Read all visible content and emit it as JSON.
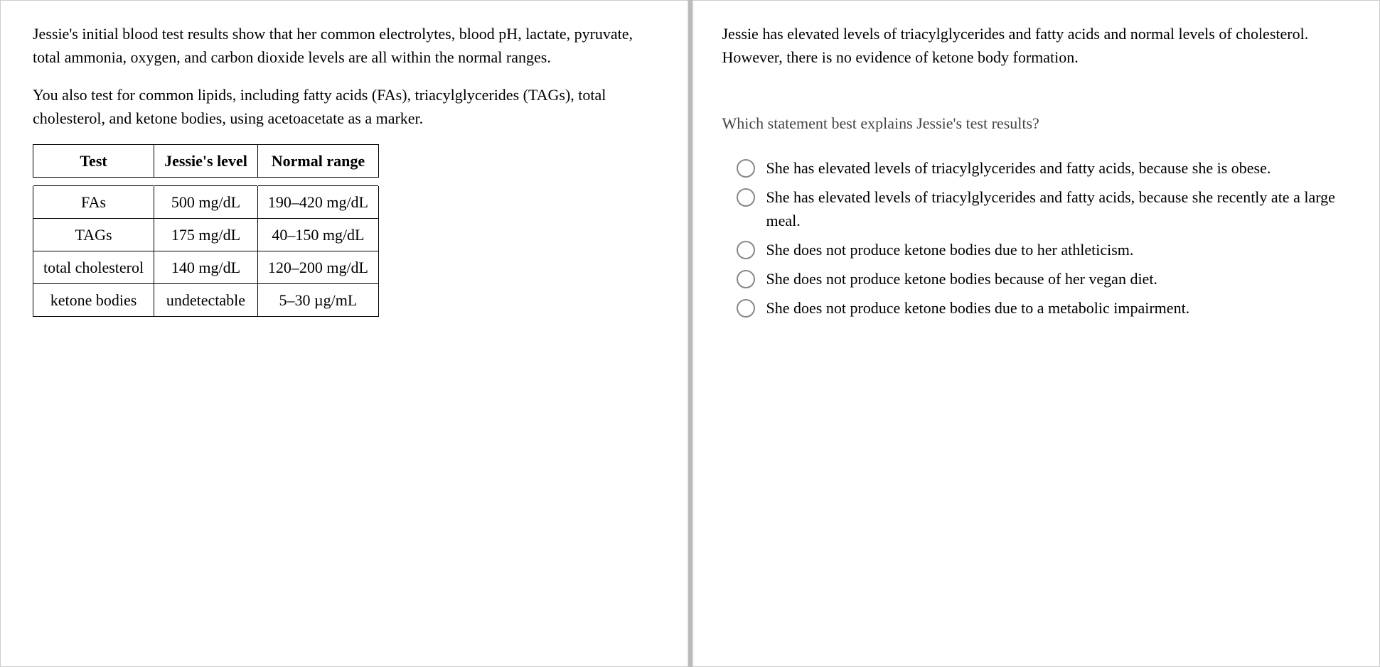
{
  "left": {
    "para1": "Jessie's initial blood test results show that her common electrolytes, blood pH, lactate, pyruvate, total ammonia, oxygen, and carbon dioxide levels are all within the normal ranges.",
    "para2": "You also test for common lipids, including fatty acids (FAs), triacylglycerides (TAGs), total cholesterol, and ketone bodies, using acetoacetate as a marker.",
    "table": {
      "columns": [
        "Test",
        "Jessie's level",
        "Normal range"
      ],
      "rows": [
        [
          "FAs",
          "500 mg/dL",
          "190–420 mg/dL"
        ],
        [
          "TAGs",
          "175 mg/dL",
          "40–150 mg/dL"
        ],
        [
          "total cholesterol",
          "140 mg/dL",
          "120–200 mg/dL"
        ],
        [
          "ketone bodies",
          "undetectable",
          "5–30 µg/mL"
        ]
      ],
      "border_color": "#000000",
      "font_size": 22
    }
  },
  "right": {
    "para1": "Jessie has elevated levels of triacylglycerides and fatty acids and normal levels of cholesterol. However, there is no evidence of ketone body formation.",
    "question": "Which statement best explains Jessie's test results?",
    "options": [
      "She has elevated levels of triacylglycerides and fatty acids, because she is obese.",
      "She has elevated levels of triacylglycerides and fatty acids, because she recently ate a large meal.",
      "She does not produce ketone bodies due to her athleticism.",
      "She does not produce ketone bodies because of her vegan diet.",
      "She does not produce ketone bodies due to a metabolic impairment."
    ],
    "radio_border_color": "#888888"
  },
  "colors": {
    "background": "#ffffff",
    "text": "#000000",
    "question_text": "#444444",
    "divider": "#bbbbbb"
  }
}
